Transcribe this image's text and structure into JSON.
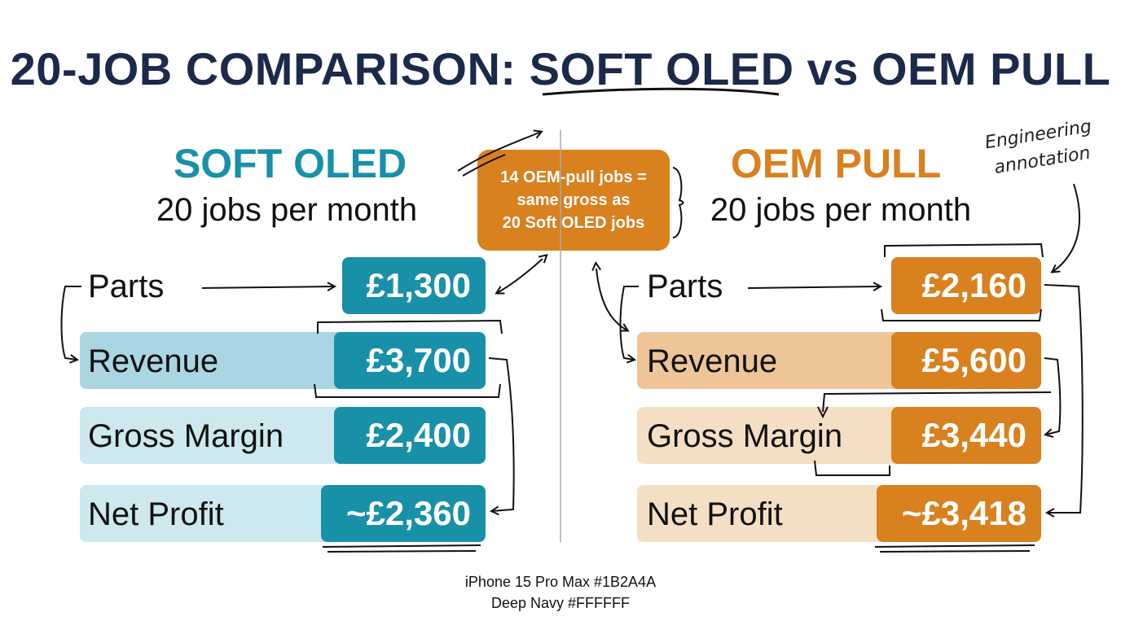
{
  "title": {
    "prefix": "20-JOB COMPARISON: ",
    "highlight": "SOFT OLED",
    "suffix": " vs OEM PULL"
  },
  "callout": {
    "lines": [
      "14 OEM-pull jobs =",
      "same gross as",
      "20 Soft OLED jobs"
    ]
  },
  "annotation": {
    "lines": [
      "Engineering",
      "annotation"
    ]
  },
  "columns": {
    "soft_oled": {
      "title": "SOFT OLED",
      "subtitle": "20 jobs per month",
      "accent": "#1890A8",
      "rows": [
        {
          "label": "Parts",
          "value": "£1,300"
        },
        {
          "label": "Revenue",
          "value": "£3,700"
        },
        {
          "label": "Gross Margin",
          "value": "£2,400"
        },
        {
          "label": "Net Profit",
          "value": "~£2,360"
        }
      ]
    },
    "oem_pull": {
      "title": "OEM PULL",
      "subtitle": "20 jobs per month",
      "accent": "#D9801F",
      "rows": [
        {
          "label": "Parts",
          "value": "£2,160"
        },
        {
          "label": "Revenue",
          "value": "£5,600"
        },
        {
          "label": "Gross Margin",
          "value": "£3,440"
        },
        {
          "label": "Net Profit",
          "value": "~£3,418"
        }
      ]
    }
  },
  "footer": {
    "line1": "iPhone 15 Pro Max #1B2A4A",
    "line2": "Deep Navy #FFFFFF"
  },
  "colors": {
    "navy": "#1B2A4A",
    "teal": "#1890A8",
    "orange": "#D9801F"
  }
}
